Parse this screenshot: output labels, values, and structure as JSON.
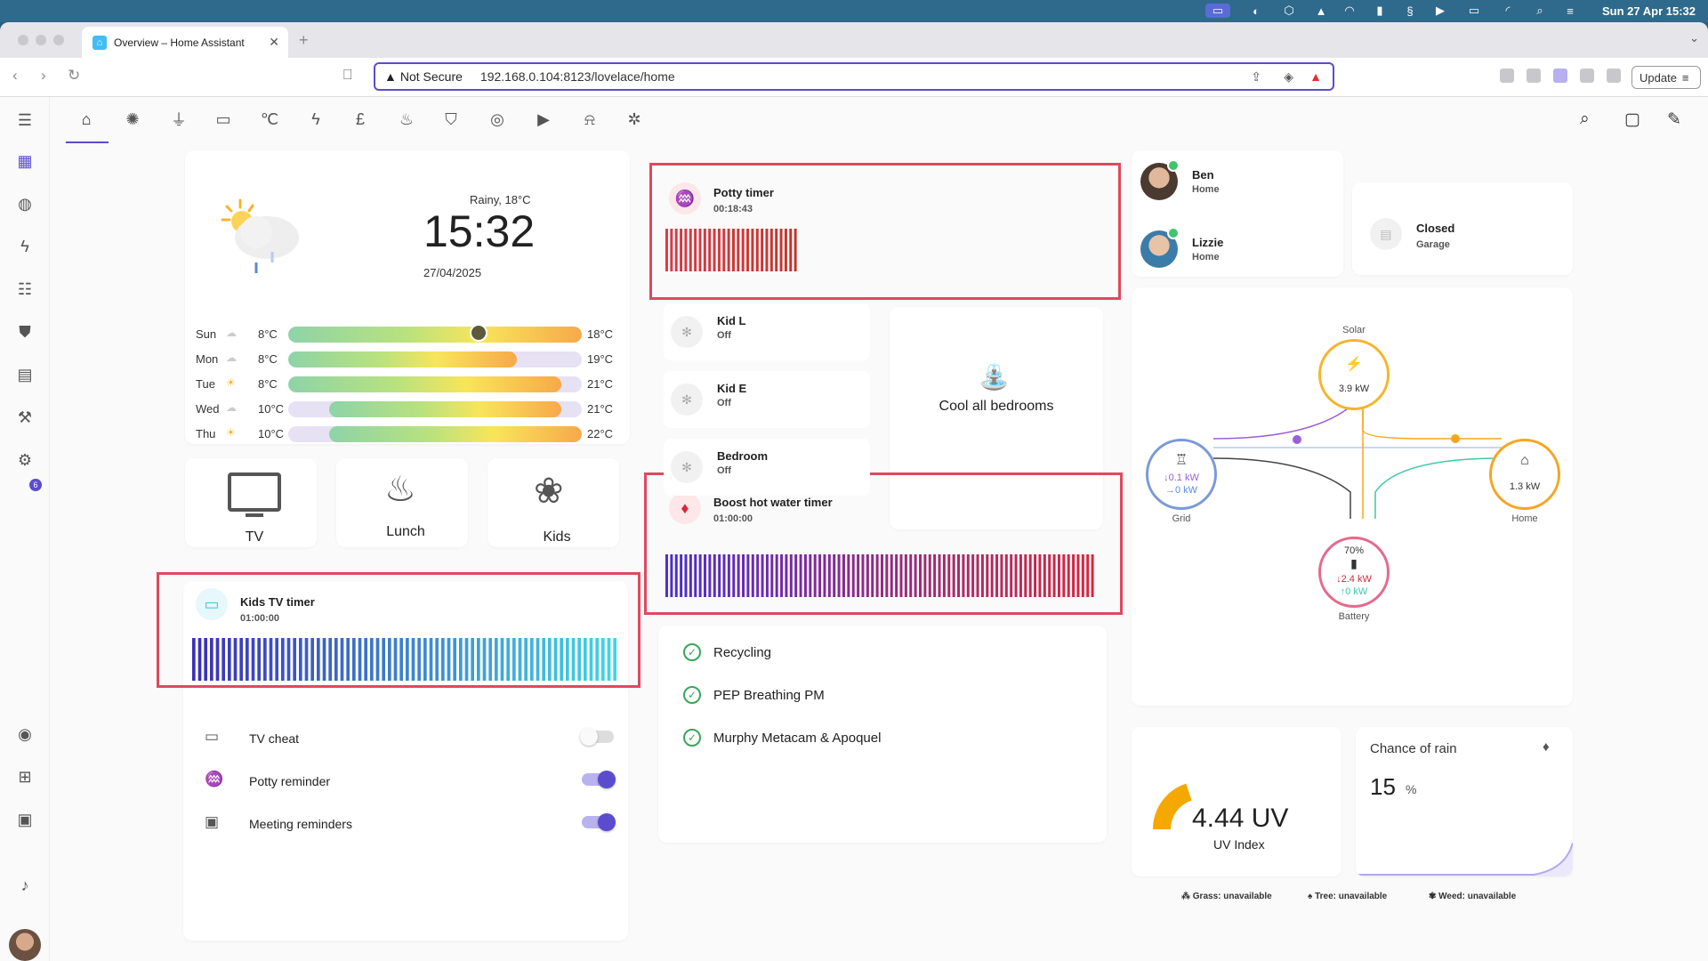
{
  "menubar": {
    "clock": "Sun 27 Apr  15:32"
  },
  "browser": {
    "tab_title": "Overview – Home Assistant",
    "security": "Not Secure",
    "url": "192.168.0.104:8123/lovelace/home",
    "update_label": "Update"
  },
  "sidebar": {
    "notifications_badge": "6"
  },
  "weather": {
    "condition": "Rainy, 18°C",
    "time": "15:32",
    "date": "27/04/2025",
    "forecast": [
      {
        "day": "Sun",
        "low": "8°C",
        "high": "18°C"
      },
      {
        "day": "Mon",
        "low": "8°C",
        "high": "19°C"
      },
      {
        "day": "Tue",
        "low": "8°C",
        "high": "21°C"
      },
      {
        "day": "Wed",
        "low": "10°C",
        "high": "21°C"
      },
      {
        "day": "Thu",
        "low": "10°C",
        "high": "22°C"
      }
    ]
  },
  "tiles": {
    "tv": "TV",
    "lunch": "Lunch",
    "kids": "Kids"
  },
  "kids_tv_timer": {
    "title": "Kids TV timer",
    "remaining": "01:00:00"
  },
  "toggles": [
    {
      "label": "TV cheat",
      "on": false
    },
    {
      "label": "Potty reminder",
      "on": true
    },
    {
      "label": "Meeting reminders",
      "on": true
    }
  ],
  "potty_timer": {
    "title": "Potty timer",
    "remaining": "00:18:43"
  },
  "climate": [
    {
      "name": "Kid L",
      "state": "Off"
    },
    {
      "name": "Kid E",
      "state": "Off"
    },
    {
      "name": "Bedroom",
      "state": "Off"
    }
  ],
  "cool_all": "Cool all bedrooms",
  "boost_timer": {
    "title": "Boost hot water timer",
    "remaining": "01:00:00"
  },
  "todos": [
    "Recycling",
    "PEP Breathing PM",
    "Murphy Metacam & Apoquel"
  ],
  "people": [
    {
      "name": "Ben",
      "state": "Home"
    },
    {
      "name": "Lizzie",
      "state": "Home"
    }
  ],
  "garage": {
    "state": "Closed",
    "name": "Garage"
  },
  "energy": {
    "solar_label": "Solar",
    "solar_value": "3.9 kW",
    "grid_label": "Grid",
    "grid_in": "↓0.1 kW",
    "grid_out": "→0 kW",
    "home_label": "Home",
    "home_value": "1.3 kW",
    "battery_label": "Battery",
    "battery_pct": "70%",
    "battery_out": "↓2.4 kW",
    "battery_in": "↑0 kW"
  },
  "uv": {
    "value": "4.44 UV",
    "label": "UV Index",
    "gauge_fraction": 0.4
  },
  "rain": {
    "title": "Chance of rain",
    "value": "15",
    "unit": "%"
  },
  "pollen": {
    "grass": "Grass: unavailable",
    "tree": "Tree: unavailable",
    "weed": "Weed: unavailable"
  },
  "colors": {
    "accent": "#5b4ccf",
    "highlight": "#e0485e"
  }
}
